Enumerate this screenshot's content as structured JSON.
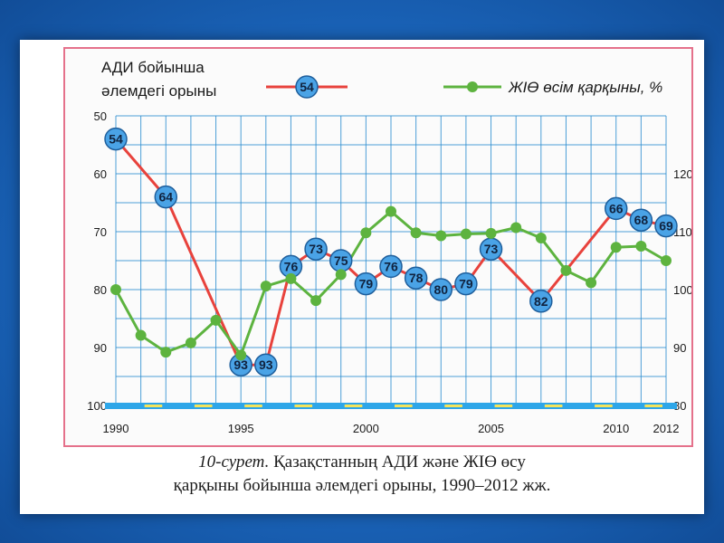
{
  "chart_data": {
    "type": "line",
    "left_axis_title_line1": "АДИ бойынша",
    "left_axis_title_line2": "әлемдегі орыны",
    "legend": {
      "series1_marker": "54",
      "series2_name": "ЖІӨ өсім қарқыны, %"
    },
    "x_tick_labels": [
      "1990",
      "1995",
      "2000",
      "2005",
      "2010",
      "2012"
    ],
    "left_axis": {
      "ticks": [
        "50",
        "60",
        "70",
        "80",
        "90",
        "100"
      ],
      "range": [
        50,
        100
      ],
      "inverted": true
    },
    "right_axis": {
      "ticks": [
        "80",
        "90",
        "100",
        "110",
        "120"
      ],
      "range": [
        80,
        130
      ]
    },
    "series": [
      {
        "axis": "left",
        "color": "#e8423c",
        "points": [
          {
            "x": 1990,
            "y": 54
          },
          {
            "x": 1992,
            "y": 64
          },
          {
            "x": 1995,
            "y": 93
          },
          {
            "x": 1996,
            "y": 93
          },
          {
            "x": 1997,
            "y": 76
          },
          {
            "x": 1998,
            "y": 73
          },
          {
            "x": 1999,
            "y": 75
          },
          {
            "x": 2000,
            "y": 79
          },
          {
            "x": 2001,
            "y": 76
          },
          {
            "x": 2002,
            "y": 78
          },
          {
            "x": 2003,
            "y": 80
          },
          {
            "x": 2004,
            "y": 79
          },
          {
            "x": 2005,
            "y": 73
          },
          {
            "x": 2007,
            "y": 82
          },
          {
            "x": 2010,
            "y": 66
          },
          {
            "x": 2011,
            "y": 68
          },
          {
            "x": 2012,
            "y": 69
          }
        ]
      },
      {
        "axis": "right",
        "color": "#5db33f",
        "points": [
          {
            "x": 1990,
            "y": 100
          },
          {
            "x": 1991,
            "y": 92.1
          },
          {
            "x": 1992,
            "y": 89.2
          },
          {
            "x": 1993,
            "y": 90.8
          },
          {
            "x": 1994,
            "y": 94.7
          },
          {
            "x": 1995,
            "y": 88.7
          },
          {
            "x": 1996,
            "y": 100.6
          },
          {
            "x": 1997,
            "y": 101.9
          },
          {
            "x": 1998,
            "y": 98.1
          },
          {
            "x": 1999,
            "y": 102.6
          },
          {
            "x": 2000,
            "y": 109.8
          },
          {
            "x": 2001,
            "y": 113.5
          },
          {
            "x": 2002,
            "y": 109.8
          },
          {
            "x": 2003,
            "y": 109.3
          },
          {
            "x": 2004,
            "y": 109.6
          },
          {
            "x": 2005,
            "y": 109.7
          },
          {
            "x": 2006,
            "y": 110.7
          },
          {
            "x": 2007,
            "y": 108.9
          },
          {
            "x": 2008,
            "y": 103.3
          },
          {
            "x": 2009,
            "y": 101.2
          },
          {
            "x": 2010,
            "y": 107.3
          },
          {
            "x": 2011,
            "y": 107.5
          },
          {
            "x": 2012,
            "y": 105.0
          }
        ]
      }
    ],
    "grid": true
  },
  "caption": {
    "figure_label": "10-сурет.",
    "line1_text": "Қазақстанның АДИ және ЖІӨ өсу",
    "line2_text": "қарқыны бойынша әлемдегі орыны, 1990–2012 жж."
  },
  "colors": {
    "frame_border": "#e5718b",
    "grid": "#2f8fd1",
    "marker_fill": "#4aa3e6",
    "marker_stroke": "#1f5f9c",
    "baseline_blue": "#2ea6e8",
    "baseline_yellow": "#f3e35a"
  }
}
